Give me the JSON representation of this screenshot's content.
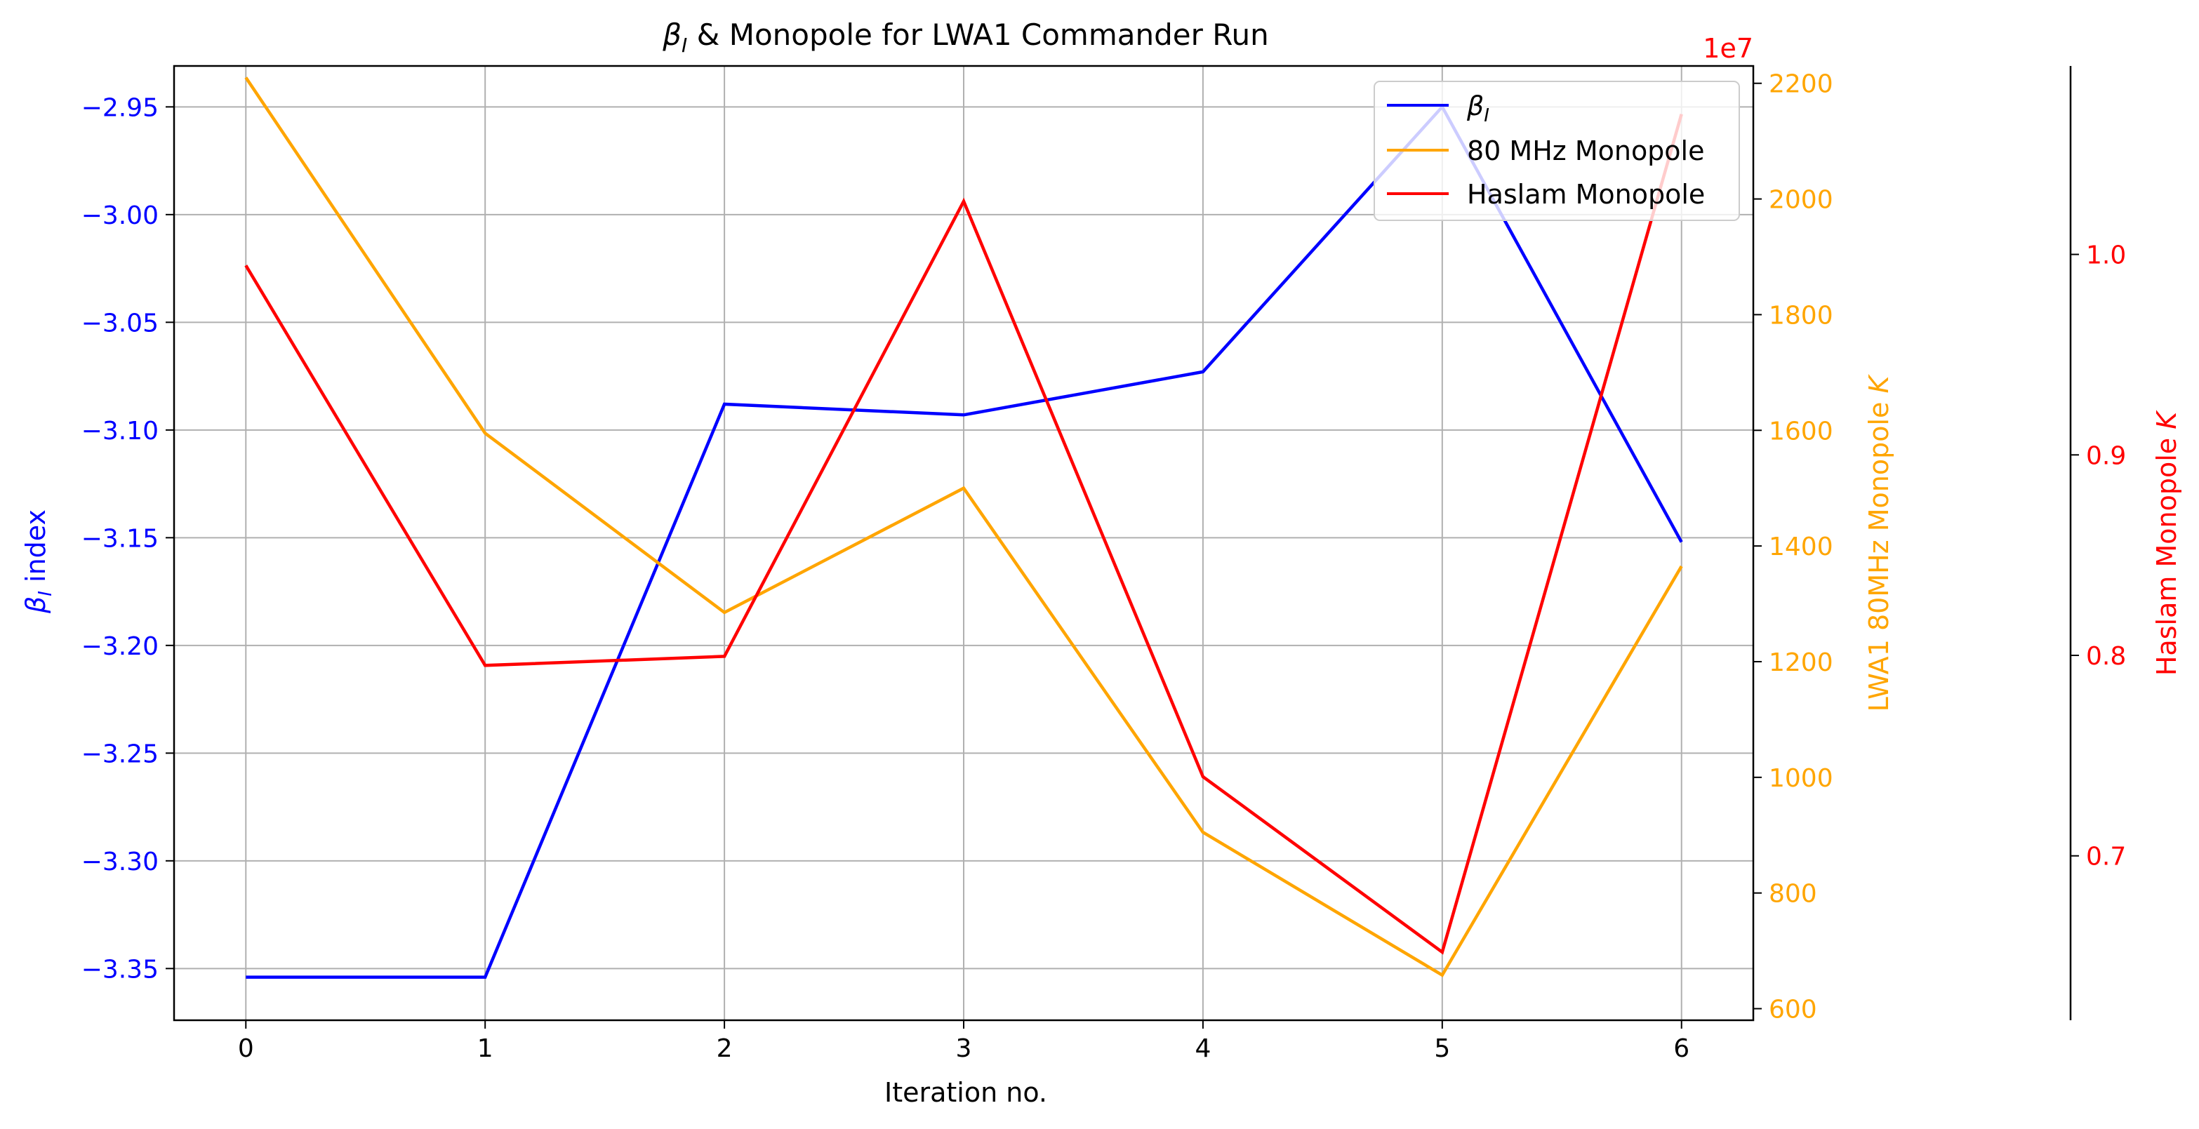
{
  "chart_data": {
    "type": "line",
    "title": {
      "beta": "β",
      "sub": "I",
      "rest": " & Monopole for LWA1 Commander Run"
    },
    "xlabel": "Iteration no.",
    "x": [
      0,
      1,
      2,
      3,
      4,
      5,
      6
    ],
    "xticks": [
      "0",
      "1",
      "2",
      "3",
      "4",
      "5",
      "6"
    ],
    "xlim": [
      -0.3,
      6.3
    ],
    "grid": true,
    "legend": {
      "position": "upper right",
      "entries": [
        {
          "beta": "β",
          "sub": "I",
          "label": "",
          "color": "#0000ff"
        },
        {
          "label": "80 MHz Monopole",
          "color": "#ffa500"
        },
        {
          "label": "Haslam Monopole",
          "color": "#ff0000"
        }
      ]
    },
    "axes": [
      {
        "id": "beta",
        "side": "left",
        "label_beta": "β",
        "label_sub": "I",
        "label_rest": " index",
        "color": "#0000ff",
        "ylim": [
          -3.374,
          -2.931
        ],
        "ticks": [
          -2.95,
          -3.0,
          -3.05,
          -3.1,
          -3.15,
          -3.2,
          -3.25,
          -3.3,
          -3.35
        ],
        "tick_labels": [
          "−2.95",
          "−3.00",
          "−3.05",
          "−3.10",
          "−3.15",
          "−3.20",
          "−3.25",
          "−3.30",
          "−3.35"
        ]
      },
      {
        "id": "lwa1",
        "side": "right",
        "label": "LWA1 80MHz Monopole K",
        "label_text": "LWA1 80MHz Monopole ",
        "label_italic": "K",
        "offset_text": "1e7",
        "color": "#ffa500",
        "ylim": [
          580,
          2230
        ],
        "ticks": [
          600,
          800,
          1000,
          1200,
          1400,
          1600,
          1800,
          2000,
          2200
        ],
        "tick_labels": [
          "600",
          "800",
          "1000",
          "1200",
          "1400",
          "1600",
          "1800",
          "2000",
          "2200"
        ]
      },
      {
        "id": "haslam",
        "side": "right-outer",
        "label": "Haslam Monopole K",
        "label_text": "Haslam Monopole ",
        "label_italic": "K",
        "color": "#ff0000",
        "ylim": [
          0.618,
          1.094
        ],
        "ticks": [
          0.7,
          0.8,
          0.9,
          1.0
        ],
        "tick_labels": [
          "0.7",
          "0.8",
          "0.9",
          "1.0"
        ]
      }
    ],
    "series": [
      {
        "axis": "beta",
        "color": "#0000ff",
        "values": [
          -3.354,
          -3.354,
          -3.088,
          -3.093,
          -3.073,
          -2.95,
          -3.152
        ]
      },
      {
        "axis": "lwa1",
        "color": "#ffa500",
        "values": [
          2210,
          1595,
          1285,
          1500,
          905,
          658,
          1365
        ]
      },
      {
        "axis": "haslam",
        "color": "#ff0000",
        "values": [
          0.9945,
          0.795,
          0.7995,
          1.0265,
          0.7395,
          0.652,
          1.07
        ]
      }
    ]
  }
}
